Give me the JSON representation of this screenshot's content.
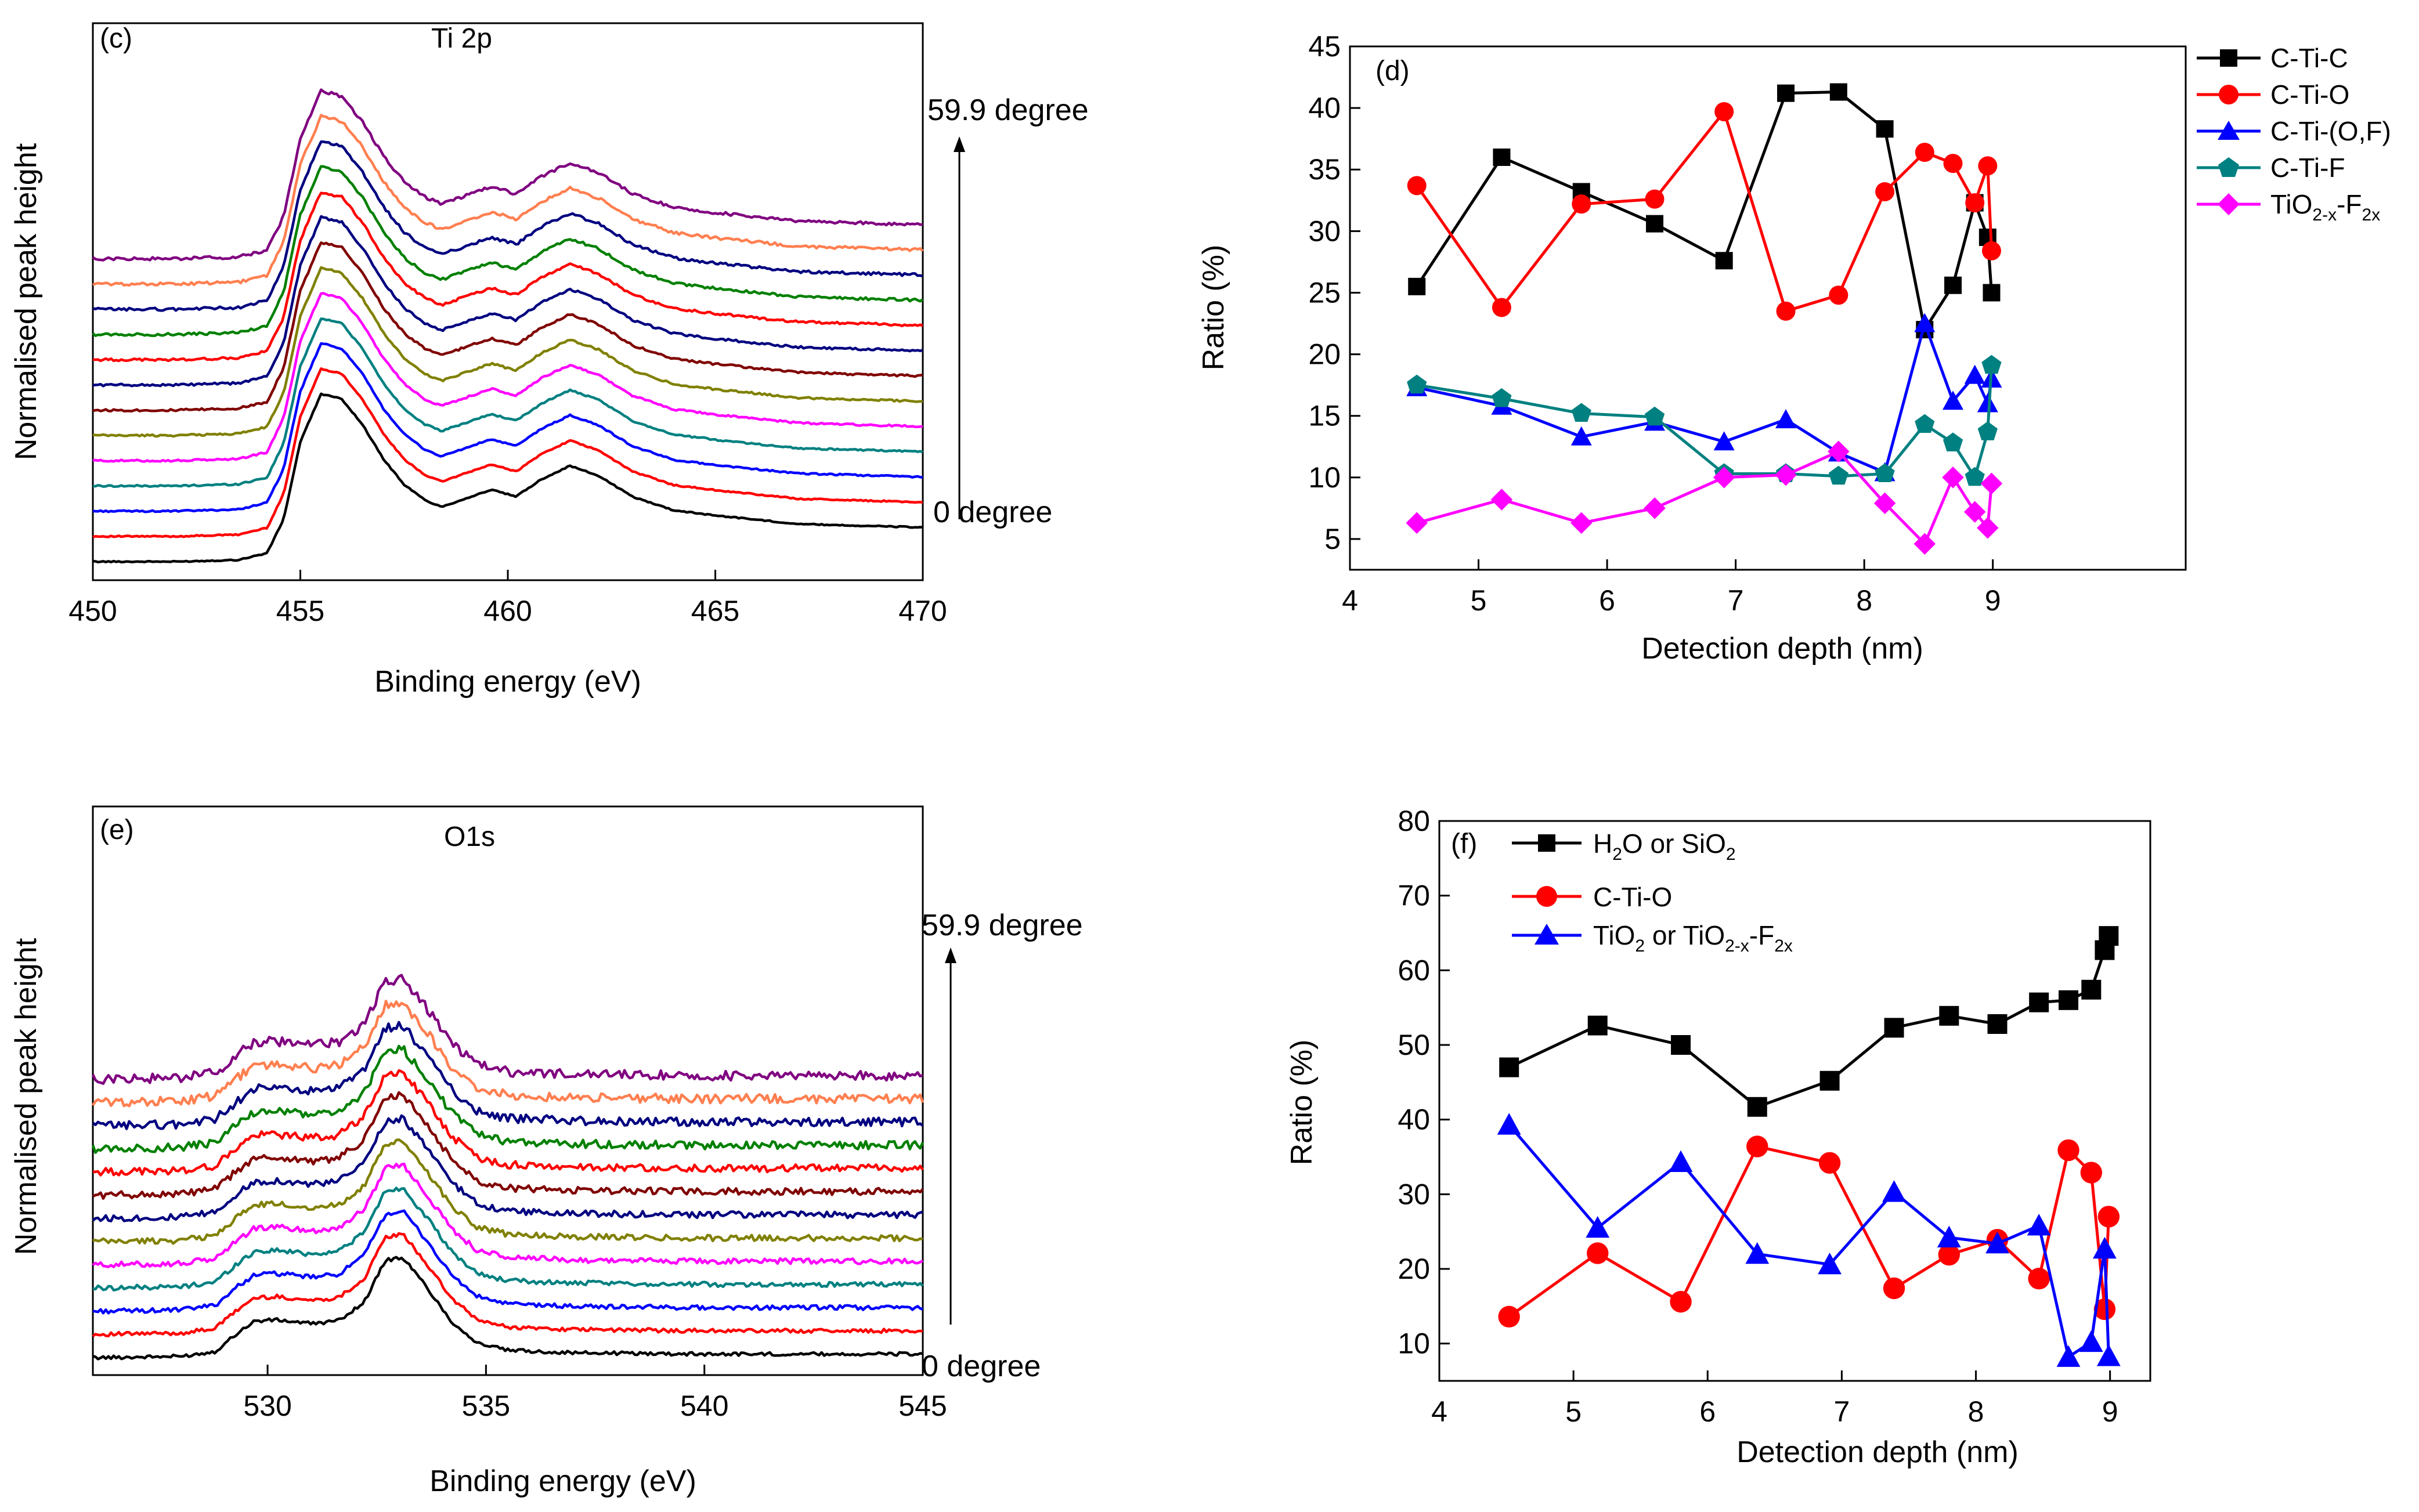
{
  "chart_data": [
    {
      "id": "c",
      "type": "line",
      "panel_label": "(c)",
      "title": "Ti 2p",
      "xlabel": "Binding energy (eV)",
      "ylabel": "Normalised peak height",
      "xlim": [
        450,
        470
      ],
      "xticks": [
        450,
        455,
        460,
        465,
        470
      ],
      "annotation_top": "59.9 degree",
      "annotation_bottom": "0 degree",
      "curve_colors": [
        "#000000",
        "#ff0000",
        "#0000ff",
        "#008080",
        "#ff00ff",
        "#808000",
        "#800000",
        "#000080",
        "#ff0000",
        "#008000",
        "#000080",
        "#ff7f50",
        "#800080"
      ],
      "profile": [
        [
          450,
          0.0
        ],
        [
          452,
          0.0
        ],
        [
          453.5,
          0.01
        ],
        [
          454.2,
          0.05
        ],
        [
          454.6,
          0.25
        ],
        [
          455.0,
          0.7
        ],
        [
          455.5,
          0.98
        ],
        [
          456.0,
          0.95
        ],
        [
          456.5,
          0.8
        ],
        [
          457.0,
          0.6
        ],
        [
          457.5,
          0.45
        ],
        [
          458.0,
          0.36
        ],
        [
          458.4,
          0.32
        ],
        [
          459.0,
          0.37
        ],
        [
          459.6,
          0.42
        ],
        [
          460.2,
          0.38
        ],
        [
          460.8,
          0.48
        ],
        [
          461.5,
          0.56
        ],
        [
          462.2,
          0.5
        ],
        [
          463.0,
          0.38
        ],
        [
          464.0,
          0.3
        ],
        [
          465.0,
          0.27
        ],
        [
          467.0,
          0.22
        ],
        [
          470.0,
          0.2
        ]
      ]
    },
    {
      "id": "d",
      "type": "line",
      "panel_label": "(d)",
      "xlabel": "Detection depth (nm)",
      "ylabel": "Ratio (%)",
      "xlim": [
        4,
        10.5
      ],
      "ylim": [
        2.5,
        45
      ],
      "xticks": [
        4,
        5,
        6,
        7,
        8,
        9
      ],
      "yticks": [
        5,
        10,
        15,
        20,
        25,
        30,
        35,
        40,
        45
      ],
      "series": [
        {
          "name": "C-Ti-C",
          "color": "#000000",
          "marker": "square",
          "x": [
            4.52,
            5.18,
            5.8,
            6.37,
            6.91,
            7.39,
            7.8,
            8.16,
            8.47,
            8.69,
            8.86,
            8.96,
            8.99
          ],
          "y": [
            25.5,
            36,
            33.2,
            30.6,
            27.6,
            41.2,
            41.3,
            38.3,
            22,
            25.6,
            32.3,
            29.5,
            25
          ]
        },
        {
          "name": "C-Ti-O",
          "color": "#ff0000",
          "marker": "circle",
          "x": [
            4.52,
            5.18,
            5.8,
            6.37,
            6.91,
            7.39,
            7.8,
            8.16,
            8.47,
            8.69,
            8.86,
            8.96,
            8.99
          ],
          "y": [
            33.7,
            23.8,
            32.2,
            32.6,
            39.7,
            23.5,
            24.8,
            33.2,
            36.4,
            35.5,
            32.3,
            35.3,
            28.4
          ]
        },
        {
          "name": "C-Ti-(O,F)",
          "color": "#0000ff",
          "marker": "triangle",
          "x": [
            4.52,
            5.18,
            5.8,
            6.37,
            6.91,
            7.39,
            7.8,
            8.16,
            8.47,
            8.69,
            8.86,
            8.96,
            8.99
          ],
          "y": [
            17.3,
            15.8,
            13.3,
            14.5,
            12.9,
            14.7,
            12,
            10.4,
            22.5,
            16.2,
            18.3,
            16,
            18
          ]
        },
        {
          "name": "C-Ti-F",
          "color": "#008080",
          "marker": "pentagon",
          "x": [
            4.52,
            5.18,
            5.8,
            6.37,
            6.91,
            7.39,
            7.8,
            8.16,
            8.47,
            8.69,
            8.86,
            8.96,
            8.99
          ],
          "y": [
            17.5,
            16.4,
            15.2,
            14.9,
            10.3,
            10.3,
            10.1,
            10.3,
            14.3,
            12.8,
            10,
            13.7,
            19.1
          ]
        },
        {
          "name": "TiO2-x-F2x",
          "label_main": "TiO",
          "label_sub1": "2-x",
          "label_mid": "-F",
          "label_sub2": "2x",
          "color": "#ff00ff",
          "marker": "diamond",
          "x": [
            4.52,
            5.18,
            5.8,
            6.37,
            6.91,
            7.39,
            7.8,
            8.16,
            8.47,
            8.69,
            8.86,
            8.96,
            8.99
          ],
          "y": [
            6.3,
            8.2,
            6.3,
            7.5,
            10,
            10.2,
            12.1,
            7.9,
            4.6,
            10,
            7.2,
            5.9,
            9.5
          ]
        }
      ]
    },
    {
      "id": "e",
      "type": "line",
      "panel_label": "(e)",
      "title": "O1s",
      "xlabel": "Binding energy (eV)",
      "ylabel": "Normalised peak height",
      "xlim": [
        526,
        545
      ],
      "xticks": [
        530,
        535,
        540,
        545
      ],
      "annotation_top": "59.9 degree",
      "annotation_bottom": "0 degree",
      "curve_colors": [
        "#000000",
        "#ff0000",
        "#0000ff",
        "#008080",
        "#ff00ff",
        "#808000",
        "#000080",
        "#800000",
        "#ff0000",
        "#008000",
        "#000080",
        "#ff7f50",
        "#800080"
      ],
      "profile": [
        [
          526,
          0.0
        ],
        [
          528,
          0.01
        ],
        [
          528.8,
          0.05
        ],
        [
          529.3,
          0.2
        ],
        [
          529.7,
          0.3
        ],
        [
          530.2,
          0.31
        ],
        [
          531,
          0.28
        ],
        [
          531.6,
          0.3
        ],
        [
          532.2,
          0.45
        ],
        [
          532.7,
          0.8
        ],
        [
          533.1,
          0.82
        ],
        [
          533.6,
          0.6
        ],
        [
          534.2,
          0.3
        ],
        [
          534.8,
          0.12
        ],
        [
          535.5,
          0.06
        ],
        [
          537,
          0.04
        ],
        [
          540,
          0.03
        ],
        [
          545,
          0.03
        ]
      ]
    },
    {
      "id": "f",
      "type": "line",
      "panel_label": "(f)",
      "xlabel": "Detection depth (nm)",
      "ylabel": "Ratio (%)",
      "xlim": [
        4,
        9.3
      ],
      "ylim": [
        5,
        80
      ],
      "xticks": [
        4,
        5,
        6,
        7,
        8,
        9
      ],
      "yticks": [
        10,
        20,
        30,
        40,
        50,
        60,
        70,
        80
      ],
      "series": [
        {
          "name": "H2O or SiO2",
          "label_a": "H",
          "label_sub_a": "2",
          "label_b": "O or SiO",
          "label_sub_b": "2",
          "color": "#000000",
          "marker": "square",
          "x": [
            4.52,
            5.18,
            5.8,
            6.37,
            6.91,
            7.39,
            7.8,
            8.16,
            8.47,
            8.69,
            8.86,
            8.96,
            8.99
          ],
          "y": [
            47,
            52.6,
            50,
            41.7,
            45.2,
            52.3,
            53.9,
            52.8,
            55.7,
            56,
            57.4,
            62.7,
            64.6
          ]
        },
        {
          "name": "C-Ti-O",
          "label_a": "C-Ti-O",
          "color": "#ff0000",
          "marker": "circle",
          "x": [
            4.52,
            5.18,
            5.8,
            6.37,
            6.91,
            7.39,
            7.8,
            8.16,
            8.47,
            8.69,
            8.86,
            8.96,
            8.99
          ],
          "y": [
            13.6,
            22.1,
            15.6,
            36.4,
            34.2,
            17.4,
            21.9,
            23.9,
            18.7,
            35.9,
            32.9,
            14.6,
            27
          ]
        },
        {
          "name": "TiO2 or TiO2-x-F2x",
          "label_a": "TiO",
          "label_sub_a": "2",
          "label_b": " or TiO",
          "label_sub_b": "2-x",
          "label_c": "-F",
          "label_sub_c": "2x",
          "color": "#0000ff",
          "marker": "triangle",
          "x": [
            4.52,
            5.18,
            5.8,
            6.37,
            6.91,
            7.39,
            7.8,
            8.16,
            8.47,
            8.69,
            8.86,
            8.96,
            8.99
          ],
          "y": [
            39.3,
            25.5,
            34.3,
            22,
            20.6,
            30.3,
            24.2,
            23.4,
            25.8,
            8.2,
            10.2,
            22.7,
            8.3
          ]
        }
      ]
    }
  ]
}
